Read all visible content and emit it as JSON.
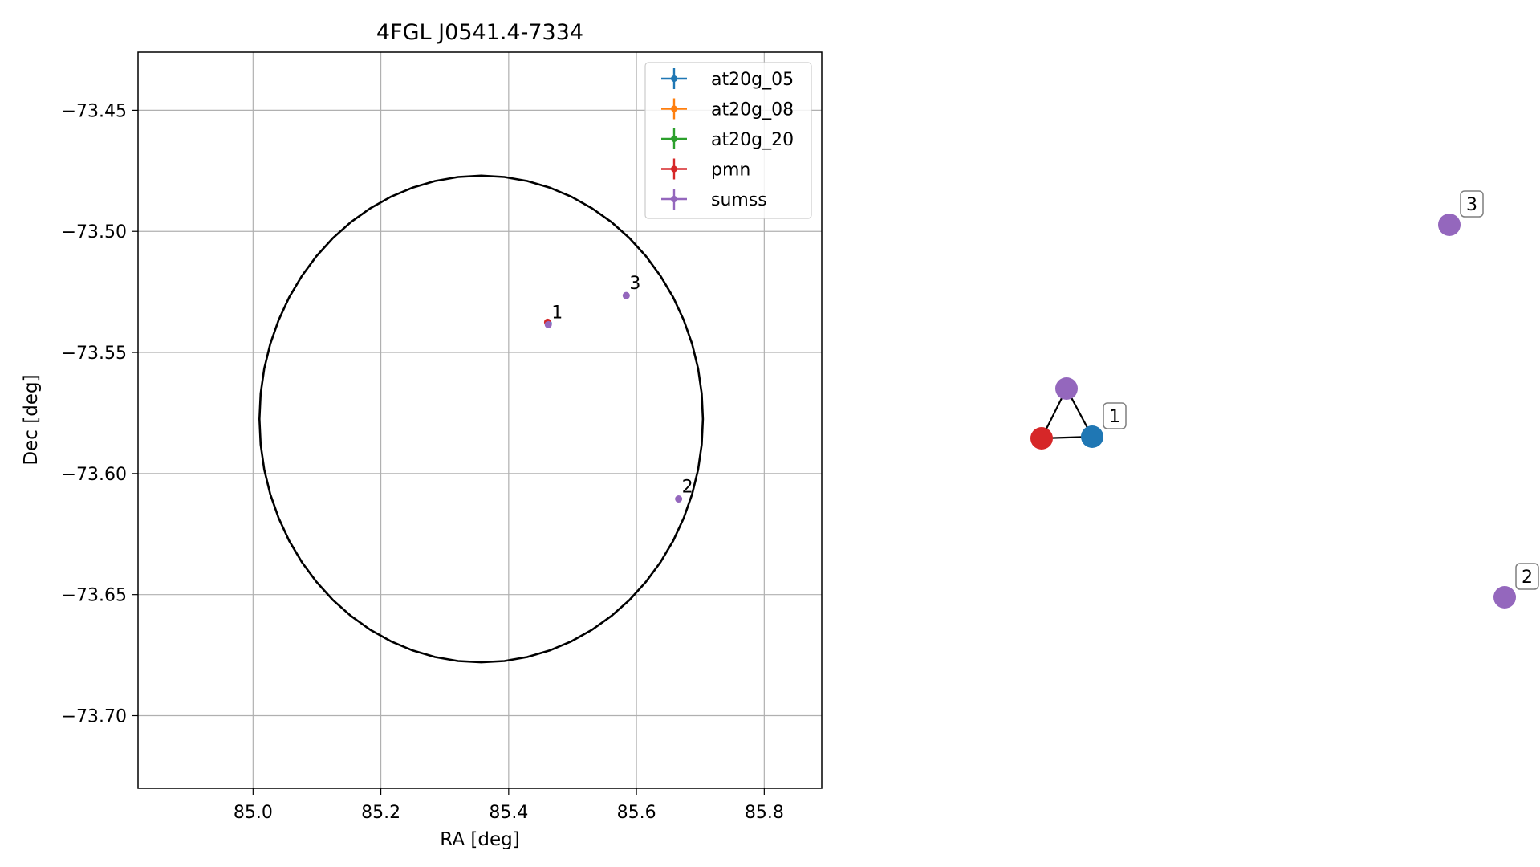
{
  "chart_data": [
    {
      "type": "scatter",
      "title": "4FGL J0541.4-7334",
      "xlabel": "RA [deg]",
      "ylabel": "Dec [deg]",
      "xlim": [
        84.82,
        85.89
      ],
      "ylim": [
        -73.73,
        -73.426
      ],
      "xticks": [
        85.0,
        85.2,
        85.4,
        85.6,
        85.8
      ],
      "xtick_labels": [
        "85.0",
        "85.2",
        "85.4",
        "85.6",
        "85.8"
      ],
      "yticks": [
        -73.45,
        -73.5,
        -73.55,
        -73.6,
        -73.65,
        -73.7
      ],
      "ytick_labels": [
        "−73.45",
        "−73.50",
        "−73.55",
        "−73.60",
        "−73.65",
        "−73.70"
      ],
      "grid": true,
      "legend_position": "top-right",
      "legend": [
        {
          "label": "at20g_05",
          "color": "#1f77b4"
        },
        {
          "label": "at20g_08",
          "color": "#ff7f0e"
        },
        {
          "label": "at20g_20",
          "color": "#2ca02c"
        },
        {
          "label": "pmn",
          "color": "#d62728"
        },
        {
          "label": "sumss",
          "color": "#9467bd"
        }
      ],
      "ellipse": {
        "center_ra": 85.357,
        "center_dec": -73.5775,
        "ra_half_width": 0.347,
        "dec_half_height": 0.1005,
        "color": "#000000"
      },
      "series": [
        {
          "name": "at20g_05",
          "color": "#1f77b4",
          "points": [
            {
              "ra": 85.462,
              "dec": -73.538
            }
          ]
        },
        {
          "name": "pmn",
          "color": "#d62728",
          "points": [
            {
              "ra": 85.461,
              "dec": -73.5375
            }
          ]
        },
        {
          "name": "sumss",
          "color": "#9467bd",
          "points": [
            {
              "ra": 85.462,
              "dec": -73.5385,
              "label": "1"
            },
            {
              "ra": 85.666,
              "dec": -73.6105,
              "label": "2"
            },
            {
              "ra": 85.584,
              "dec": -73.5265,
              "label": "3"
            }
          ]
        }
      ]
    },
    {
      "type": "graph",
      "nodes": [
        {
          "id": "at20g_05",
          "color": "#1f77b4",
          "label": "1"
        },
        {
          "id": "pmn",
          "color": "#d62728",
          "label": ""
        },
        {
          "id": "sumss-1",
          "color": "#9467bd",
          "label": ""
        },
        {
          "id": "sumss-3",
          "color": "#9467bd",
          "label": "3"
        },
        {
          "id": "sumss-2",
          "color": "#9467bd",
          "label": "2"
        }
      ],
      "edges": [
        [
          "sumss-1",
          "pmn"
        ],
        [
          "sumss-1",
          "at20g_05"
        ],
        [
          "pmn",
          "at20g_05"
        ]
      ]
    }
  ]
}
